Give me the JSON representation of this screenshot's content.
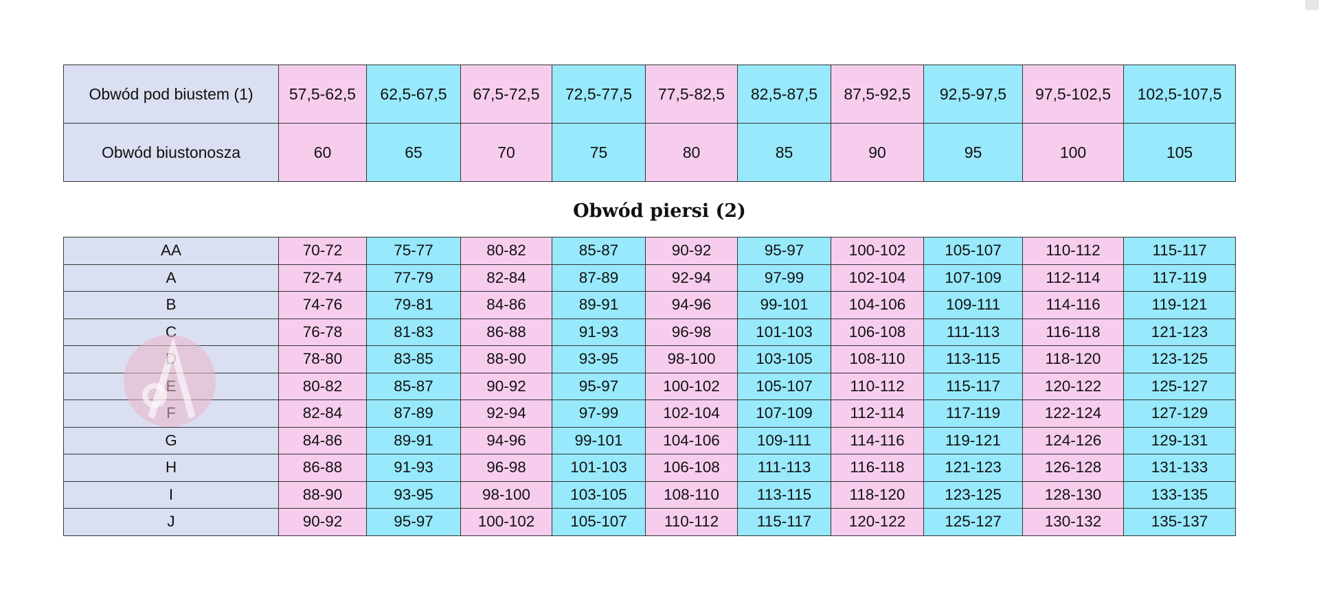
{
  "colors": {
    "label": "#dae0f1",
    "pink": "#f7cdee",
    "cyan": "#97e9fb"
  },
  "table1": {
    "rows": [
      {
        "label": "Obwód pod biustem (1)",
        "values": [
          "57,5-62,5",
          "62,5-67,5",
          "67,5-72,5",
          "72,5-77,5",
          "77,5-82,5",
          "82,5-87,5",
          "87,5-92,5",
          "92,5-97,5",
          "97,5-102,5",
          "102,5-107,5"
        ]
      },
      {
        "label": "Obwód biustonosza",
        "values": [
          "60",
          "65",
          "70",
          "75",
          "80",
          "85",
          "90",
          "95",
          "100",
          "105"
        ]
      }
    ]
  },
  "title": "Obwód piersi (2)",
  "table2": {
    "rows": [
      {
        "label": "AA",
        "values": [
          "70-72",
          "75-77",
          "80-82",
          "85-87",
          "90-92",
          "95-97",
          "100-102",
          "105-107",
          "110-112",
          "115-117"
        ]
      },
      {
        "label": "A",
        "values": [
          "72-74",
          "77-79",
          "82-84",
          "87-89",
          "92-94",
          "97-99",
          "102-104",
          "107-109",
          "112-114",
          "117-119"
        ]
      },
      {
        "label": "B",
        "values": [
          "74-76",
          "79-81",
          "84-86",
          "89-91",
          "94-96",
          "99-101",
          "104-106",
          "109-111",
          "114-116",
          "119-121"
        ]
      },
      {
        "label": "C",
        "values": [
          "76-78",
          "81-83",
          "86-88",
          "91-93",
          "96-98",
          "101-103",
          "106-108",
          "111-113",
          "116-118",
          "121-123"
        ]
      },
      {
        "label": "D",
        "values": [
          "78-80",
          "83-85",
          "88-90",
          "93-95",
          "98-100",
          "103-105",
          "108-110",
          "113-115",
          "118-120",
          "123-125"
        ]
      },
      {
        "label": "E",
        "values": [
          "80-82",
          "85-87",
          "90-92",
          "95-97",
          "100-102",
          "105-107",
          "110-112",
          "115-117",
          "120-122",
          "125-127"
        ]
      },
      {
        "label": "F",
        "values": [
          "82-84",
          "87-89",
          "92-94",
          "97-99",
          "102-104",
          "107-109",
          "112-114",
          "117-119",
          "122-124",
          "127-129"
        ]
      },
      {
        "label": "G",
        "values": [
          "84-86",
          "89-91",
          "94-96",
          "99-101",
          "104-106",
          "109-111",
          "114-116",
          "119-121",
          "124-126",
          "129-131"
        ]
      },
      {
        "label": "H",
        "values": [
          "86-88",
          "91-93",
          "96-98",
          "101-103",
          "106-108",
          "111-113",
          "116-118",
          "121-123",
          "126-128",
          "131-133"
        ]
      },
      {
        "label": "I",
        "values": [
          "88-90",
          "93-95",
          "98-100",
          "103-105",
          "108-110",
          "113-115",
          "118-120",
          "123-125",
          "128-130",
          "133-135"
        ]
      },
      {
        "label": "J",
        "values": [
          "90-92",
          "95-97",
          "100-102",
          "105-107",
          "110-112",
          "115-117",
          "120-122",
          "125-127",
          "130-132",
          "135-137"
        ]
      }
    ]
  },
  "watermark": {
    "icon": "letter-a-logo"
  }
}
